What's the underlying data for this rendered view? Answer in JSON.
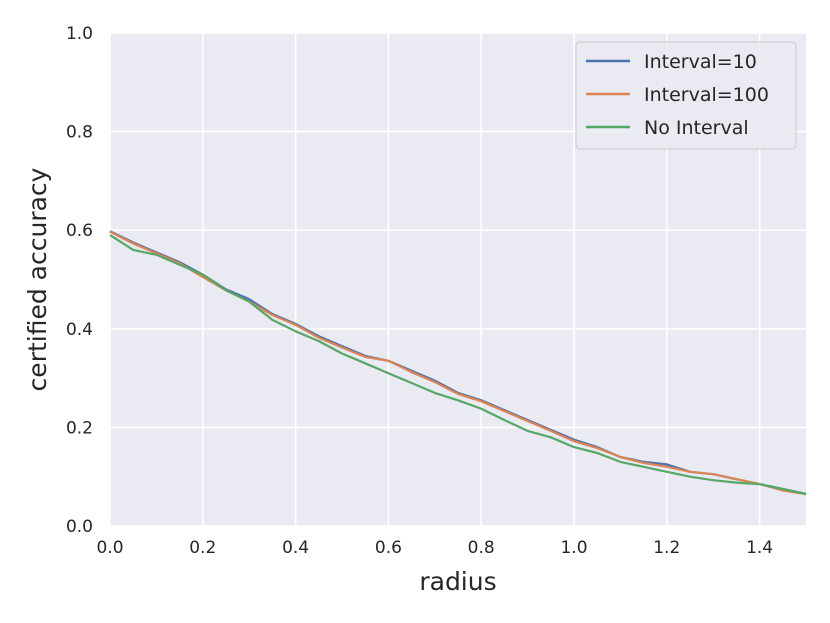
{
  "chart_data": {
    "type": "line",
    "title": "",
    "xlabel": "radius",
    "ylabel": "certified accuracy",
    "xlim": [
      0.0,
      1.5
    ],
    "ylim": [
      0.0,
      1.0
    ],
    "xticks": [
      "0.0",
      "0.2",
      "0.4",
      "0.6",
      "0.8",
      "1.0",
      "1.2",
      "1.4"
    ],
    "xtick_values": [
      0.0,
      0.2,
      0.4,
      0.6,
      0.8,
      1.0,
      1.2,
      1.4
    ],
    "yticks": [
      "0.0",
      "0.2",
      "0.4",
      "0.6",
      "0.8",
      "1.0"
    ],
    "ytick_values": [
      0.0,
      0.2,
      0.4,
      0.6,
      0.8,
      1.0
    ],
    "grid": true,
    "background_color": "#eaeaf2",
    "legend_position": "top-right",
    "x": [
      0.0,
      0.05,
      0.1,
      0.15,
      0.2,
      0.25,
      0.3,
      0.35,
      0.4,
      0.45,
      0.5,
      0.55,
      0.6,
      0.65,
      0.7,
      0.75,
      0.8,
      0.85,
      0.9,
      0.95,
      1.0,
      1.05,
      1.1,
      1.15,
      1.2,
      1.25,
      1.3,
      1.35,
      1.4,
      1.45,
      1.5
    ],
    "series": [
      {
        "name": "Interval=10",
        "color": "#4c72b0",
        "values": [
          0.598,
          0.575,
          0.555,
          0.535,
          0.51,
          0.48,
          0.46,
          0.43,
          0.41,
          0.385,
          0.365,
          0.345,
          0.335,
          0.315,
          0.295,
          0.27,
          0.255,
          0.235,
          0.215,
          0.195,
          0.175,
          0.16,
          0.14,
          0.13,
          0.125,
          0.11,
          0.105,
          0.095,
          0.085,
          0.075,
          0.065
        ]
      },
      {
        "name": "Interval=100",
        "color": "#dd8452",
        "values": [
          0.597,
          0.573,
          0.553,
          0.533,
          0.505,
          0.478,
          0.455,
          0.428,
          0.408,
          0.382,
          0.362,
          0.343,
          0.335,
          0.312,
          0.292,
          0.268,
          0.253,
          0.233,
          0.213,
          0.193,
          0.172,
          0.158,
          0.14,
          0.128,
          0.12,
          0.11,
          0.105,
          0.095,
          0.085,
          0.072,
          0.065
        ]
      },
      {
        "name": "No Interval",
        "color": "#55a868",
        "values": [
          0.59,
          0.56,
          0.55,
          0.53,
          0.51,
          0.478,
          0.455,
          0.418,
          0.395,
          0.375,
          0.35,
          0.33,
          0.31,
          0.29,
          0.27,
          0.255,
          0.238,
          0.215,
          0.193,
          0.18,
          0.16,
          0.148,
          0.13,
          0.12,
          0.11,
          0.1,
          0.093,
          0.088,
          0.085,
          0.075,
          0.065
        ]
      }
    ]
  }
}
